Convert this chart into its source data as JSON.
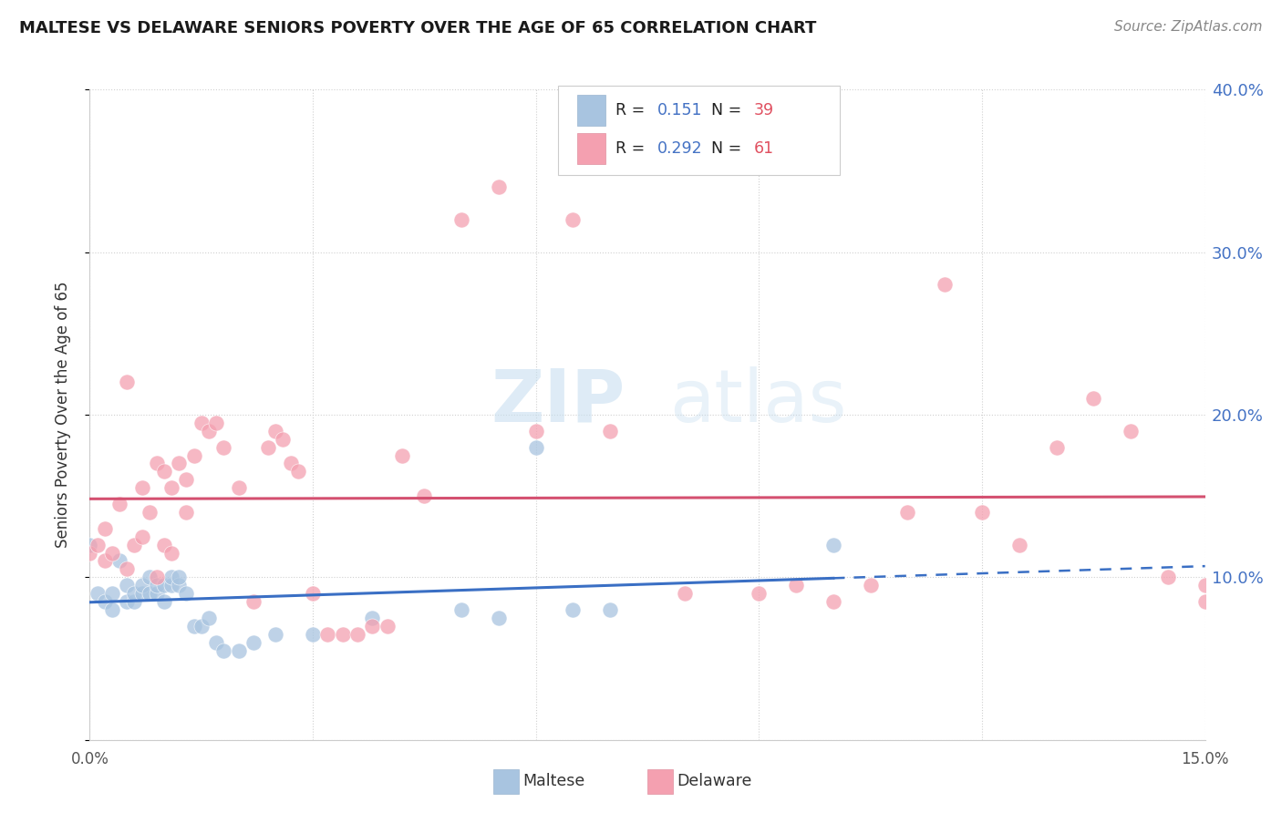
{
  "title": "MALTESE VS DELAWARE SENIORS POVERTY OVER THE AGE OF 65 CORRELATION CHART",
  "source": "Source: ZipAtlas.com",
  "ylabel": "Seniors Poverty Over the Age of 65",
  "xlim": [
    0,
    0.15
  ],
  "ylim": [
    0,
    0.4
  ],
  "maltese_color": "#a8c4e0",
  "delaware_color": "#f4a0b0",
  "maltese_R": 0.151,
  "maltese_N": 39,
  "delaware_R": 0.292,
  "delaware_N": 61,
  "maltese_trend_color": "#3a6fc4",
  "delaware_trend_color": "#d45070",
  "watermark_zip": "ZIP",
  "watermark_atlas": "atlas",
  "maltese_x": [
    0.0,
    0.001,
    0.002,
    0.003,
    0.003,
    0.004,
    0.005,
    0.005,
    0.006,
    0.006,
    0.007,
    0.007,
    0.008,
    0.008,
    0.009,
    0.009,
    0.01,
    0.01,
    0.011,
    0.011,
    0.012,
    0.012,
    0.013,
    0.014,
    0.015,
    0.016,
    0.017,
    0.018,
    0.02,
    0.022,
    0.025,
    0.03,
    0.038,
    0.05,
    0.055,
    0.06,
    0.065,
    0.07,
    0.1
  ],
  "maltese_y": [
    0.12,
    0.09,
    0.085,
    0.08,
    0.09,
    0.11,
    0.085,
    0.095,
    0.085,
    0.09,
    0.09,
    0.095,
    0.09,
    0.1,
    0.09,
    0.095,
    0.085,
    0.095,
    0.095,
    0.1,
    0.095,
    0.1,
    0.09,
    0.07,
    0.07,
    0.075,
    0.06,
    0.055,
    0.055,
    0.06,
    0.065,
    0.065,
    0.075,
    0.08,
    0.075,
    0.18,
    0.08,
    0.08,
    0.12
  ],
  "delaware_x": [
    0.0,
    0.001,
    0.002,
    0.002,
    0.003,
    0.004,
    0.005,
    0.005,
    0.006,
    0.007,
    0.007,
    0.008,
    0.009,
    0.009,
    0.01,
    0.01,
    0.011,
    0.011,
    0.012,
    0.013,
    0.013,
    0.014,
    0.015,
    0.016,
    0.017,
    0.018,
    0.02,
    0.022,
    0.024,
    0.025,
    0.026,
    0.027,
    0.028,
    0.03,
    0.032,
    0.034,
    0.036,
    0.038,
    0.04,
    0.042,
    0.045,
    0.05,
    0.055,
    0.06,
    0.065,
    0.07,
    0.08,
    0.09,
    0.095,
    0.1,
    0.105,
    0.11,
    0.115,
    0.12,
    0.125,
    0.13,
    0.135,
    0.14,
    0.145,
    0.15,
    0.15
  ],
  "delaware_y": [
    0.115,
    0.12,
    0.11,
    0.13,
    0.115,
    0.145,
    0.105,
    0.22,
    0.12,
    0.125,
    0.155,
    0.14,
    0.1,
    0.17,
    0.12,
    0.165,
    0.115,
    0.155,
    0.17,
    0.14,
    0.16,
    0.175,
    0.195,
    0.19,
    0.195,
    0.18,
    0.155,
    0.085,
    0.18,
    0.19,
    0.185,
    0.17,
    0.165,
    0.09,
    0.065,
    0.065,
    0.065,
    0.07,
    0.07,
    0.175,
    0.15,
    0.32,
    0.34,
    0.19,
    0.32,
    0.19,
    0.09,
    0.09,
    0.095,
    0.085,
    0.095,
    0.14,
    0.28,
    0.14,
    0.12,
    0.18,
    0.21,
    0.19,
    0.1,
    0.095,
    0.085
  ]
}
